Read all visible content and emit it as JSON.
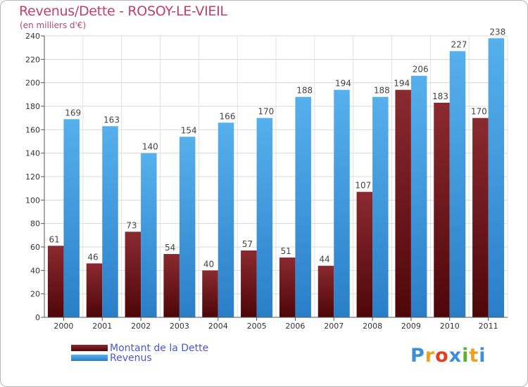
{
  "chart_data": {
    "type": "bar",
    "title": "Revenus/Dette - ROSOY-LE-VIEIL",
    "subtitle": "(en milliers d'€)",
    "categories": [
      "2000",
      "2001",
      "2002",
      "2003",
      "2004",
      "2005",
      "2006",
      "2007",
      "2008",
      "2009",
      "2010",
      "2011"
    ],
    "series": [
      {
        "name": "Montant de la Dette",
        "color": "#7a1a22",
        "values": [
          61,
          46,
          73,
          54,
          40,
          57,
          51,
          44,
          107,
          194,
          183,
          170
        ]
      },
      {
        "name": "Revenus",
        "color": "#3a9ae0",
        "values": [
          169,
          163,
          140,
          154,
          166,
          170,
          188,
          194,
          188,
          206,
          227,
          238
        ]
      }
    ],
    "ylim": [
      0,
      240
    ],
    "yticks": [
      0,
      20,
      40,
      60,
      80,
      100,
      120,
      140,
      160,
      180,
      200,
      220,
      240
    ],
    "grid": true,
    "legend": "bottom-left"
  },
  "logo": {
    "text": "Proxiti",
    "letters": [
      "P",
      "r",
      "o",
      "x",
      "i",
      "t",
      "i"
    ],
    "colors": [
      "#3a8fd8",
      "#f0a020",
      "#e04020",
      "#3a8fd8",
      "#60b030",
      "#f0a020",
      "#3a8fd8"
    ]
  }
}
